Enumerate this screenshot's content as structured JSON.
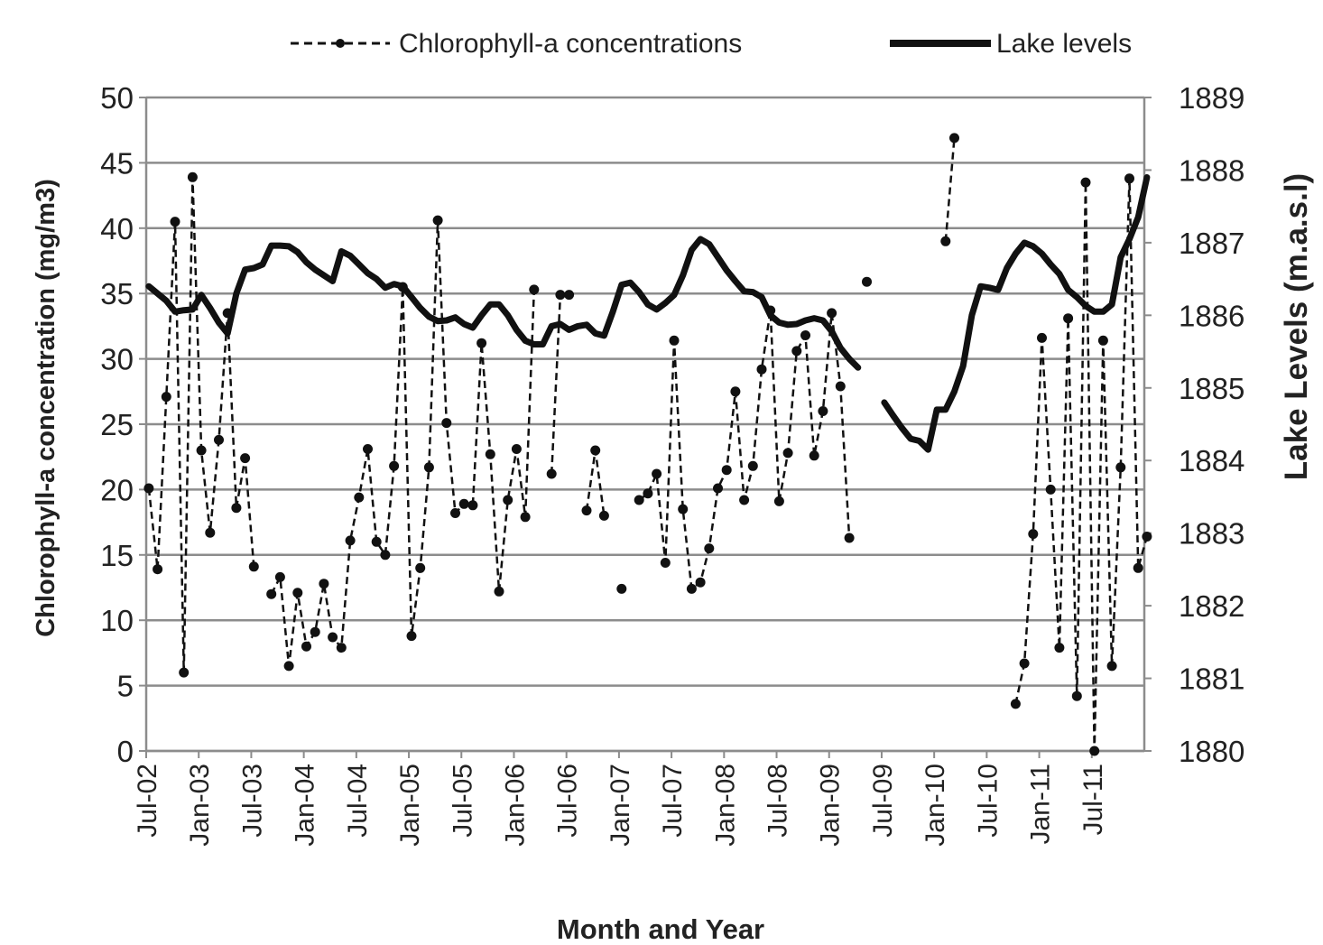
{
  "chart_data": {
    "type": "line",
    "title": "",
    "xlabel": "Month and Year",
    "ylabel_left": "Chlorophyll-a concentration (mg/m3)",
    "ylabel_right": "Lake Levels (m.a.s.l)",
    "x_tick_labels": [
      "Jul-02",
      "Jan-03",
      "Jul-03",
      "Jan-04",
      "Jul-04",
      "Jan-05",
      "Jul-05",
      "Jan-06",
      "Jul-06",
      "Jan-07",
      "Jul-07",
      "Jan-08",
      "Jul-08",
      "Jan-09",
      "Jul-09",
      "Jan-10",
      "Jul-10",
      "Jan-11",
      "Jul-11"
    ],
    "x_start": "2002-07",
    "x_range_months": [
      0,
      114
    ],
    "ylim_left": [
      0,
      50
    ],
    "yticks_left": [
      0,
      5,
      10,
      15,
      20,
      25,
      30,
      35,
      40,
      45,
      50
    ],
    "ylim_right": [
      1880,
      1889
    ],
    "yticks_right": [
      1880,
      1881,
      1882,
      1883,
      1884,
      1885,
      1886,
      1887,
      1888,
      1889
    ],
    "grid": true,
    "legend_position": "top",
    "legend": [
      {
        "label": "Chlorophyll-a concentrations",
        "style": "dashed-with-markers"
      },
      {
        "label": "Lake levels",
        "style": "thick-solid"
      }
    ],
    "series": [
      {
        "name": "Chlorophyll-a concentrations",
        "axis": "left",
        "color": "#111111",
        "points": [
          [
            0.3,
            20.1
          ],
          [
            1.3,
            13.9
          ],
          [
            2.3,
            27.1
          ],
          [
            3.3,
            40.5
          ],
          [
            4.3,
            6.0
          ],
          [
            5.3,
            43.9
          ],
          [
            6.3,
            23.0
          ],
          [
            7.3,
            16.7
          ],
          [
            8.3,
            23.8
          ],
          [
            9.3,
            33.5
          ],
          [
            10.3,
            18.6
          ],
          [
            11.3,
            22.4
          ],
          [
            12.3,
            14.1
          ],
          null,
          [
            14.3,
            12.0
          ],
          [
            15.3,
            13.3
          ],
          [
            16.3,
            6.5
          ],
          [
            17.3,
            12.1
          ],
          [
            18.3,
            8.0
          ],
          [
            19.3,
            9.1
          ],
          [
            20.3,
            12.8
          ],
          [
            21.3,
            8.7
          ],
          [
            22.3,
            7.9
          ],
          [
            23.3,
            16.1
          ],
          [
            24.3,
            19.4
          ],
          [
            25.3,
            23.1
          ],
          [
            26.3,
            16.0
          ],
          [
            27.3,
            15.0
          ],
          [
            28.3,
            21.8
          ],
          [
            29.3,
            35.5
          ],
          [
            30.3,
            8.8
          ],
          [
            31.3,
            14.0
          ],
          [
            32.3,
            21.7
          ],
          [
            33.3,
            40.6
          ],
          [
            34.3,
            25.1
          ],
          [
            35.3,
            18.2
          ],
          [
            36.3,
            18.9
          ],
          [
            37.3,
            18.8
          ],
          [
            38.3,
            31.2
          ],
          [
            39.3,
            22.7
          ],
          [
            40.3,
            12.2
          ],
          [
            41.3,
            19.2
          ],
          [
            42.3,
            23.1
          ],
          [
            43.3,
            17.9
          ],
          [
            44.3,
            35.3
          ],
          null,
          [
            46.3,
            21.2
          ],
          [
            47.3,
            34.9
          ],
          [
            48.3,
            34.9
          ],
          null,
          [
            50.3,
            18.4
          ],
          [
            51.3,
            23.0
          ],
          [
            52.3,
            18.0
          ],
          null,
          [
            54.3,
            12.4
          ],
          null,
          [
            56.3,
            19.2
          ],
          [
            57.3,
            19.7
          ],
          [
            58.3,
            21.2
          ],
          [
            59.3,
            14.4
          ],
          [
            60.3,
            31.4
          ],
          [
            61.3,
            18.5
          ],
          [
            62.3,
            12.4
          ],
          [
            63.3,
            12.9
          ],
          [
            64.3,
            15.5
          ],
          [
            65.3,
            20.1
          ],
          [
            66.3,
            21.5
          ],
          [
            67.3,
            27.5
          ],
          [
            68.3,
            19.2
          ],
          [
            69.3,
            21.8
          ],
          [
            70.3,
            29.2
          ],
          [
            71.3,
            33.7
          ],
          [
            72.3,
            19.1
          ],
          [
            73.3,
            22.8
          ],
          [
            74.3,
            30.6
          ],
          [
            75.3,
            31.8
          ],
          [
            76.3,
            22.6
          ],
          [
            77.3,
            26.0
          ],
          [
            78.3,
            33.5
          ],
          [
            79.3,
            27.9
          ],
          [
            80.3,
            16.3
          ],
          null,
          [
            82.3,
            35.9
          ],
          null,
          [
            91.3,
            39.0
          ],
          [
            92.3,
            46.9
          ],
          null,
          [
            99.3,
            3.6
          ],
          [
            100.3,
            6.7
          ],
          [
            101.3,
            16.6
          ],
          [
            102.3,
            31.6
          ],
          [
            103.3,
            20.0
          ],
          [
            104.3,
            7.9
          ],
          [
            105.3,
            33.1
          ],
          [
            106.3,
            4.2
          ],
          [
            107.3,
            43.5
          ],
          [
            108.3,
            0.0
          ],
          [
            109.3,
            31.4
          ],
          [
            110.3,
            6.5
          ],
          [
            111.3,
            21.7
          ],
          [
            112.3,
            43.8
          ],
          [
            113.3,
            14.0
          ],
          [
            114.3,
            16.4
          ]
        ]
      },
      {
        "name": "Lake levels",
        "axis": "right",
        "color": "#111111",
        "points": [
          [
            0.3,
            1886.4
          ],
          [
            1.3,
            1886.3
          ],
          [
            2.3,
            1886.2
          ],
          [
            3.3,
            1886.05
          ],
          [
            4.3,
            1886.07
          ],
          [
            5.3,
            1886.08
          ],
          [
            6.3,
            1886.28
          ],
          [
            7.3,
            1886.1
          ],
          [
            8.3,
            1885.9
          ],
          [
            9.3,
            1885.75
          ],
          [
            10.3,
            1886.3
          ],
          [
            11.3,
            1886.63
          ],
          [
            12.3,
            1886.65
          ],
          [
            13.3,
            1886.7
          ],
          [
            14.3,
            1886.96
          ],
          [
            15.3,
            1886.96
          ],
          [
            16.3,
            1886.95
          ],
          [
            17.3,
            1886.87
          ],
          [
            18.3,
            1886.73
          ],
          [
            19.3,
            1886.63
          ],
          [
            20.3,
            1886.55
          ],
          [
            21.3,
            1886.47
          ],
          [
            22.3,
            1886.88
          ],
          [
            23.3,
            1886.82
          ],
          [
            24.3,
            1886.7
          ],
          [
            25.3,
            1886.58
          ],
          [
            26.3,
            1886.5
          ],
          [
            27.3,
            1886.38
          ],
          [
            28.3,
            1886.43
          ],
          [
            29.3,
            1886.4
          ],
          [
            30.3,
            1886.25
          ],
          [
            31.3,
            1886.1
          ],
          [
            32.3,
            1885.98
          ],
          [
            33.3,
            1885.92
          ],
          [
            34.3,
            1885.93
          ],
          [
            35.3,
            1885.97
          ],
          [
            36.3,
            1885.88
          ],
          [
            37.3,
            1885.83
          ],
          [
            38.3,
            1886.0
          ],
          [
            39.3,
            1886.15
          ],
          [
            40.3,
            1886.15
          ],
          [
            41.3,
            1886.0
          ],
          [
            42.3,
            1885.8
          ],
          [
            43.3,
            1885.65
          ],
          [
            44.3,
            1885.6
          ],
          [
            45.3,
            1885.6
          ],
          [
            46.3,
            1885.85
          ],
          [
            47.3,
            1885.88
          ],
          [
            48.3,
            1885.8
          ],
          [
            49.3,
            1885.85
          ],
          [
            50.3,
            1885.87
          ],
          [
            51.3,
            1885.75
          ],
          [
            52.3,
            1885.72
          ],
          [
            53.3,
            1886.05
          ],
          [
            54.3,
            1886.42
          ],
          [
            55.3,
            1886.45
          ],
          [
            56.3,
            1886.32
          ],
          [
            57.3,
            1886.15
          ],
          [
            58.3,
            1886.08
          ],
          [
            59.3,
            1886.17
          ],
          [
            60.3,
            1886.28
          ],
          [
            61.3,
            1886.55
          ],
          [
            62.3,
            1886.9
          ],
          [
            63.3,
            1887.05
          ],
          [
            64.3,
            1886.98
          ],
          [
            65.3,
            1886.8
          ],
          [
            66.3,
            1886.62
          ],
          [
            67.3,
            1886.47
          ],
          [
            68.3,
            1886.33
          ],
          [
            69.3,
            1886.32
          ],
          [
            70.3,
            1886.25
          ],
          [
            71.3,
            1886.0
          ],
          [
            72.3,
            1885.9
          ],
          [
            73.3,
            1885.87
          ],
          [
            74.3,
            1885.88
          ],
          [
            75.3,
            1885.93
          ],
          [
            76.3,
            1885.96
          ],
          [
            77.3,
            1885.93
          ],
          [
            78.3,
            1885.78
          ],
          [
            79.3,
            1885.55
          ],
          [
            80.3,
            1885.4
          ],
          [
            81.3,
            1885.28
          ],
          null,
          [
            84.3,
            1884.8
          ],
          [
            85.3,
            1884.62
          ],
          [
            86.3,
            1884.45
          ],
          [
            87.3,
            1884.3
          ],
          [
            88.3,
            1884.27
          ],
          [
            89.3,
            1884.15
          ],
          [
            90.3,
            1884.7
          ],
          [
            91.3,
            1884.7
          ],
          [
            92.3,
            1884.95
          ],
          [
            93.3,
            1885.3
          ],
          [
            94.3,
            1886.0
          ],
          [
            95.3,
            1886.4
          ],
          [
            96.3,
            1886.38
          ],
          [
            97.3,
            1886.35
          ],
          [
            98.3,
            1886.65
          ],
          [
            99.3,
            1886.85
          ],
          [
            100.3,
            1887.0
          ],
          [
            101.3,
            1886.95
          ],
          [
            102.3,
            1886.85
          ],
          [
            103.3,
            1886.7
          ],
          [
            104.3,
            1886.57
          ],
          [
            105.3,
            1886.35
          ],
          [
            106.3,
            1886.25
          ],
          [
            107.3,
            1886.13
          ],
          [
            108.3,
            1886.05
          ],
          [
            109.3,
            1886.05
          ],
          [
            110.3,
            1886.15
          ],
          [
            111.3,
            1886.8
          ],
          [
            112.3,
            1887.05
          ],
          [
            113.3,
            1887.35
          ],
          [
            114.3,
            1887.9
          ]
        ]
      }
    ]
  }
}
